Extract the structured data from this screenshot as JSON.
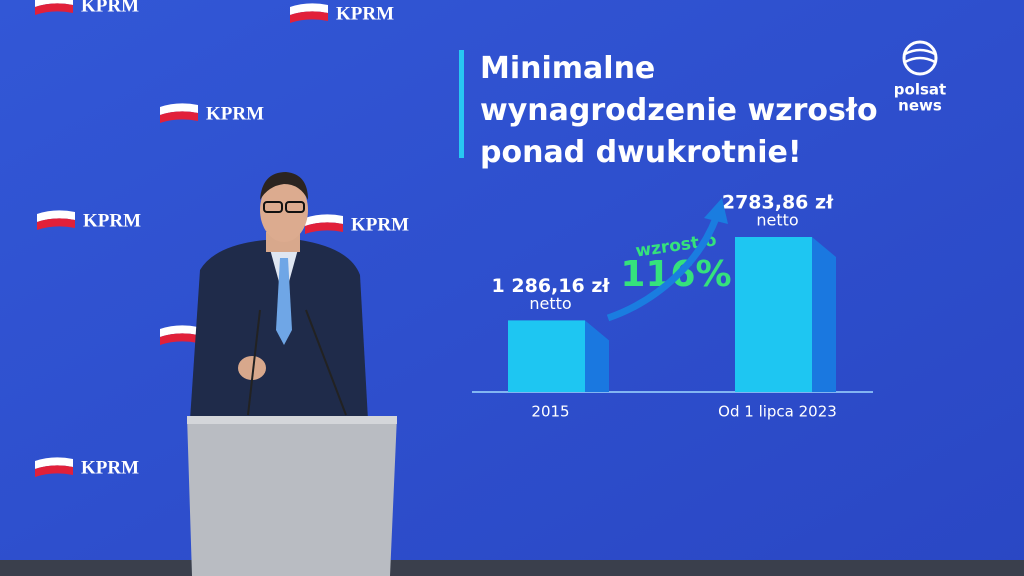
{
  "logo_text": "KPRM",
  "broadcaster": [
    "polsat",
    "news"
  ],
  "chart_data": {
    "type": "bar",
    "title": "Minimalne wynagrodzenie wzrosło ponad dwukrotnie!",
    "categories": [
      "2015",
      "Od 1 lipca 2023"
    ],
    "values": [
      1286.16,
      2783.86
    ],
    "value_labels": [
      "1 286,16 zł",
      "2783,86 zł"
    ],
    "value_note": "netto",
    "annotation": [
      "wzrost o",
      "116%"
    ],
    "color": "#1ec6f2",
    "side_color": "#1a78e0"
  }
}
